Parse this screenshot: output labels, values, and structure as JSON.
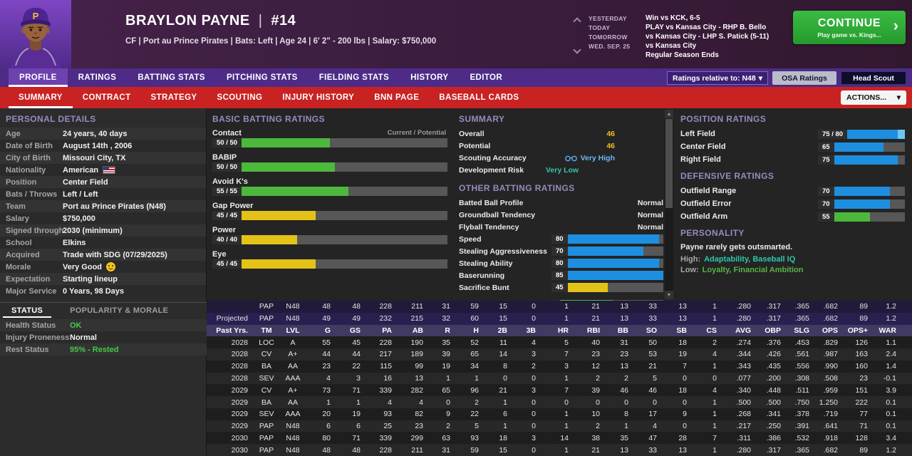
{
  "icons": {
    "pipe": "|",
    "caret_down": "▾",
    "chevron_right": "›",
    "scroll_up": "▲",
    "scroll_down": "▼"
  },
  "colors": {
    "tab_bar_purple": "#4d2b86",
    "sub_tab_red": "#c92222",
    "continue_green": "#2fae37",
    "rating_green": "#4cb83c",
    "rating_yellow": "#e4c318",
    "rating_blue": "#1e8fe0",
    "potential_blue": "#69c8f2",
    "overall_yellow": "#e9c21b",
    "teal": "#2fc6a9",
    "low_trait_green": "#55b545"
  },
  "header": {
    "player_name": "BRAYLON PAYNE",
    "jersey_number": "#14",
    "cap_monogram": "P",
    "subtitle": "CF | Port au Prince Pirates | Bats: Left | Age 24 | 6' 2\" - 200 lbs | Salary: $750,000",
    "schedule": [
      {
        "label": "YESTERDAY",
        "text": "Win vs KCK, 6-5"
      },
      {
        "label": "TODAY",
        "text": "PLAY vs Kansas City - RHP B. Bello"
      },
      {
        "label": "TOMORROW",
        "text": "vs Kansas City - LHP S. Patick (5-11)"
      },
      {
        "label": "WED. SEP. 25",
        "text": "vs Kansas City"
      },
      {
        "label": "",
        "text": "Regular Season Ends"
      }
    ],
    "continue": {
      "label": "CONTINUE",
      "sublabel": "Play game vs. Kings..."
    }
  },
  "main_tabs": {
    "items": [
      "PROFILE",
      "RATINGS",
      "BATTING STATS",
      "PITCHING STATS",
      "FIELDING STATS",
      "HISTORY",
      "EDITOR"
    ],
    "active": "PROFILE",
    "ratings_dropdown": "Ratings relative to: N48",
    "osa_button": "OSA Ratings",
    "head_scout_button": "Head Scout"
  },
  "sub_tabs": {
    "items": [
      "SUMMARY",
      "CONTRACT",
      "STRATEGY",
      "SCOUTING",
      "INJURY HISTORY",
      "BNN PAGE",
      "BASEBALL CARDS"
    ],
    "active": "SUMMARY",
    "actions_button": "ACTIONS..."
  },
  "personal_details": {
    "title": "PERSONAL DETAILS",
    "rows": [
      {
        "label": "Age",
        "value": "24 years, 40 days"
      },
      {
        "label": "Date of Birth",
        "value": "August 14th , 2006"
      },
      {
        "label": "City of Birth",
        "value": "Missouri City, TX"
      },
      {
        "label": "Nationality",
        "value": "American",
        "flag": true
      },
      {
        "label": "Position",
        "value": "Center Field"
      },
      {
        "label": "Bats / Throws",
        "value": "Left / Left"
      },
      {
        "label": "Team",
        "value": "Port au Prince Pirates (N48)"
      },
      {
        "label": "Salary",
        "value": "$750,000"
      },
      {
        "label": "Signed through",
        "value": "2030 (minimum)"
      },
      {
        "label": "School",
        "value": "Elkins"
      },
      {
        "label": "Acquired",
        "value": "Trade with SDG (07/29/2025)"
      },
      {
        "label": "Morale",
        "value": "Very Good",
        "emoji": true
      },
      {
        "label": "Expectation",
        "value": "Starting lineup"
      },
      {
        "label": "Major Service",
        "value": "0 Years, 98 Days"
      }
    ]
  },
  "status_panel": {
    "tabs": [
      "STATUS",
      "POPULARITY & MORALE"
    ],
    "active": "STATUS",
    "rows": [
      {
        "label": "Health Status",
        "value": "OK",
        "color": "green"
      },
      {
        "label": "Injury Proneness",
        "value": "Normal",
        "color": "white"
      },
      {
        "label": "Rest Status",
        "value": "95% - Rested",
        "color": "green"
      }
    ]
  },
  "batting_ratings": {
    "title": "BASIC BATTING RATINGS",
    "scale_note": "Current / Potential",
    "items": [
      {
        "label": "Contact",
        "value": "50 / 50",
        "pct": 50,
        "color": "green"
      },
      {
        "label": "BABIP",
        "value": "50 / 50",
        "pct": 52,
        "color": "green"
      },
      {
        "label": "Avoid K's",
        "value": "55 / 55",
        "pct": 58,
        "color": "green"
      },
      {
        "label": "Gap Power",
        "value": "45 / 45",
        "pct": 44,
        "color": "yellow"
      },
      {
        "label": "Power",
        "value": "40 / 40",
        "pct": 36,
        "color": "yellow"
      },
      {
        "label": "Eye",
        "value": "45 / 45",
        "pct": 44,
        "color": "yellow"
      }
    ]
  },
  "summary_panel": {
    "title": "SUMMARY",
    "overall_label": "Overall",
    "overall_value": "46",
    "potential_label": "Potential",
    "potential_value": "46",
    "scouting_accuracy_label": "Scouting Accuracy",
    "scouting_accuracy_value": "Very High",
    "development_risk_label": "Development Risk",
    "development_risk_value": "Very Low",
    "other_title": "OTHER BATTING RATINGS",
    "text_rows": [
      {
        "label": "Batted Ball Profile",
        "value": "Normal"
      },
      {
        "label": "Groundball Tendency",
        "value": "Normal"
      },
      {
        "label": "Flyball Tendency",
        "value": "Normal"
      }
    ],
    "bar_rows": [
      {
        "label": "Speed",
        "value": "80",
        "pct": 96,
        "color": "blue"
      },
      {
        "label": "Stealing Aggressiveness",
        "value": "70",
        "pct": 82,
        "color": "blue"
      },
      {
        "label": "Stealing Ability",
        "value": "80",
        "pct": 96,
        "color": "blue"
      },
      {
        "label": "Baserunning",
        "value": "85",
        "pct": 100,
        "color": "blue"
      },
      {
        "label": "Sacrifice Bunt",
        "value": "45",
        "pct": 50,
        "color": "yellow"
      }
    ]
  },
  "position_panel": {
    "position_title": "POSITION RATINGS",
    "position_rows": [
      {
        "label": "Left Field",
        "value": "75 / 80",
        "pct": 92,
        "pot": 100,
        "color": "blue"
      },
      {
        "label": "Center Field",
        "value": "65",
        "pct": 75,
        "color": "blue"
      },
      {
        "label": "Right Field",
        "value": "75",
        "pct": 92,
        "color": "blue"
      }
    ],
    "defensive_title": "DEFENSIVE RATINGS",
    "defensive_rows": [
      {
        "label": "Outfield Range",
        "value": "70",
        "pct": 83,
        "color": "blue"
      },
      {
        "label": "Outfield Error",
        "value": "70",
        "pct": 83,
        "color": "blue"
      },
      {
        "label": "Outfield Arm",
        "value": "55",
        "pct": 60,
        "color": "green"
      }
    ],
    "personality_title": "PERSONALITY",
    "personality_text": "Payne rarely gets outsmarted.",
    "high_label": "High:",
    "high_value": "Adaptability, Baseball IQ",
    "low_label": "Low:",
    "low_value": "Loyalty, Financial Ambition"
  },
  "stats_table": {
    "columns": [
      "",
      "TM",
      "LVL",
      "G",
      "GS",
      "PA",
      "AB",
      "R",
      "H",
      "2B",
      "3B",
      "HR",
      "RBI",
      "BB",
      "SO",
      "SB",
      "CS",
      "AVG",
      "OBP",
      "SLG",
      "OPS",
      "OPS+",
      "WAR"
    ],
    "rows": [
      {
        "kind": "season",
        "cells": [
          "",
          "PAP",
          "N48",
          "48",
          "48",
          "228",
          "211",
          "31",
          "59",
          "15",
          "0",
          "1",
          "21",
          "13",
          "33",
          "13",
          "1",
          ".280",
          ".317",
          ".365",
          ".682",
          "89",
          "1.2"
        ]
      },
      {
        "kind": "projected",
        "cells": [
          "Projected",
          "PAP",
          "N48",
          "49",
          "49",
          "232",
          "215",
          "32",
          "60",
          "15",
          "0",
          "1",
          "21",
          "13",
          "33",
          "13",
          "1",
          ".280",
          ".317",
          ".365",
          ".682",
          "89",
          "1.2"
        ]
      },
      {
        "kind": "header",
        "cells": [
          "Past Yrs.",
          "TM",
          "LVL",
          "G",
          "GS",
          "PA",
          "AB",
          "R",
          "H",
          "2B",
          "3B",
          "HR",
          "RBI",
          "BB",
          "SO",
          "SB",
          "CS",
          "AVG",
          "OBP",
          "SLG",
          "OPS",
          "OPS+",
          "WAR"
        ]
      },
      {
        "kind": "data",
        "cells": [
          "2028",
          "LOC",
          "A",
          "55",
          "45",
          "228",
          "190",
          "35",
          "52",
          "11",
          "4",
          "5",
          "40",
          "31",
          "50",
          "18",
          "2",
          ".274",
          ".376",
          ".453",
          ".829",
          "126",
          "1.1"
        ]
      },
      {
        "kind": "data",
        "cells": [
          "2028",
          "CV",
          "A+",
          "44",
          "44",
          "217",
          "189",
          "39",
          "65",
          "14",
          "3",
          "7",
          "23",
          "23",
          "53",
          "19",
          "4",
          ".344",
          ".426",
          ".561",
          ".987",
          "163",
          "2.4"
        ]
      },
      {
        "kind": "data",
        "cells": [
          "2028",
          "BA",
          "AA",
          "23",
          "22",
          "115",
          "99",
          "19",
          "34",
          "8",
          "2",
          "3",
          "12",
          "13",
          "21",
          "7",
          "1",
          ".343",
          ".435",
          ".556",
          ".990",
          "160",
          "1.4"
        ]
      },
      {
        "kind": "data",
        "cells": [
          "2028",
          "SEV",
          "AAA",
          "4",
          "3",
          "16",
          "13",
          "1",
          "1",
          "0",
          "0",
          "1",
          "2",
          "2",
          "5",
          "0",
          "0",
          ".077",
          ".200",
          ".308",
          ".508",
          "23",
          "-0.1"
        ]
      },
      {
        "kind": "data",
        "cells": [
          "2029",
          "CV",
          "A+",
          "73",
          "71",
          "339",
          "282",
          "65",
          "96",
          "21",
          "3",
          "7",
          "39",
          "46",
          "46",
          "18",
          "4",
          ".340",
          ".448",
          ".511",
          ".959",
          "151",
          "3.9"
        ]
      },
      {
        "kind": "data",
        "cells": [
          "2029",
          "BA",
          "AA",
          "1",
          "1",
          "4",
          "4",
          "0",
          "2",
          "1",
          "0",
          "0",
          "0",
          "0",
          "0",
          "0",
          "1",
          ".500",
          ".500",
          ".750",
          "1.250",
          "222",
          "0.1"
        ]
      },
      {
        "kind": "data",
        "cells": [
          "2029",
          "SEV",
          "AAA",
          "20",
          "19",
          "93",
          "82",
          "9",
          "22",
          "6",
          "0",
          "1",
          "10",
          "8",
          "17",
          "9",
          "1",
          ".268",
          ".341",
          ".378",
          ".719",
          "77",
          "0.1"
        ]
      },
      {
        "kind": "data",
        "cells": [
          "2029",
          "PAP",
          "N48",
          "6",
          "6",
          "25",
          "23",
          "2",
          "5",
          "1",
          "0",
          "1",
          "2",
          "1",
          "4",
          "0",
          "1",
          ".217",
          ".250",
          ".391",
          ".641",
          "71",
          "0.1"
        ]
      },
      {
        "kind": "data",
        "cells": [
          "2030",
          "PAP",
          "N48",
          "80",
          "71",
          "339",
          "299",
          "63",
          "93",
          "18",
          "3",
          "14",
          "38",
          "35",
          "47",
          "28",
          "7",
          ".311",
          ".386",
          ".532",
          ".918",
          "128",
          "3.4"
        ]
      },
      {
        "kind": "data",
        "cells": [
          "2030",
          "PAP",
          "N48",
          "48",
          "48",
          "228",
          "211",
          "31",
          "59",
          "15",
          "0",
          "1",
          "21",
          "13",
          "33",
          "13",
          "1",
          ".280",
          ".317",
          ".365",
          ".682",
          "89",
          "1.2"
        ]
      }
    ]
  }
}
